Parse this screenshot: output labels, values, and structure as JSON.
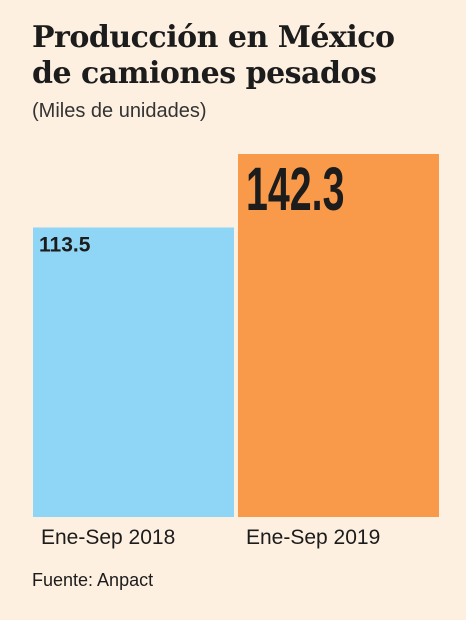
{
  "header": {
    "title_line1": "Producción en México",
    "title_line2": "de camiones pesados",
    "subtitle": "(Miles de unidades)"
  },
  "footer": {
    "source": "Fuente: Anpact"
  },
  "colors": {
    "background": "#fdf0e1",
    "bar_2018": "#8fd6f6",
    "bar_2019": "#f99a4a",
    "text": "#1c1c1c"
  },
  "chart_data": {
    "type": "bar",
    "title": "Producción en México de camiones pesados",
    "subtitle": "(Miles de unidades)",
    "categories": [
      "Ene-Sep 2018",
      "Ene-Sep 2019"
    ],
    "values": [
      113.5,
      142.3
    ],
    "value_labels": [
      "113.5",
      "142.3"
    ],
    "xlabel": "",
    "ylabel": "",
    "ylim": [
      0,
      142.3
    ],
    "grid": false,
    "legend": "none",
    "bar_colors": [
      "#8fd6f6",
      "#f99a4a"
    ]
  }
}
